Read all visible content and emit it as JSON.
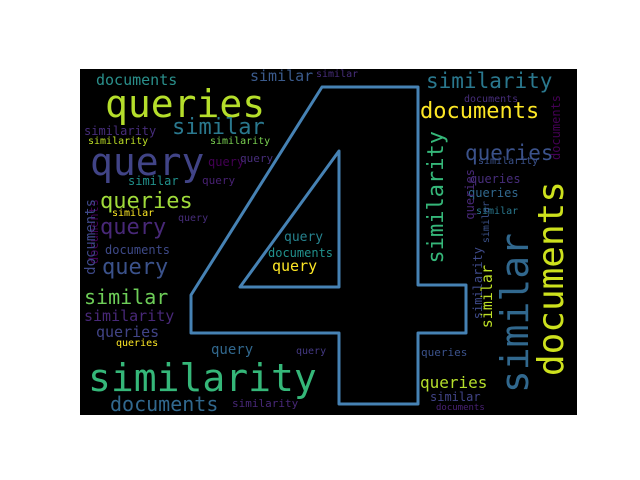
{
  "word_cloud": {
    "words": [
      {
        "text": "documents",
        "color": "#2a8f8b"
      },
      {
        "text": "similar",
        "color": "#3b5b8d"
      },
      {
        "text": "similar",
        "color": "#472d7b"
      },
      {
        "text": "similarity",
        "color": "#2a788e"
      },
      {
        "text": "queries",
        "color": "#b5de2b"
      },
      {
        "text": "documents",
        "color": "#fde725"
      },
      {
        "text": "documents",
        "color": "#472d7b"
      },
      {
        "text": "similarity",
        "color": "#472d7b"
      },
      {
        "text": "similar",
        "color": "#2a788e"
      },
      {
        "text": "similarity",
        "color": "#bddf26"
      },
      {
        "text": "similarity",
        "color": "#7ad151"
      },
      {
        "text": "queries",
        "color": "#3b528b"
      },
      {
        "text": "query",
        "color": "#414487"
      },
      {
        "text": "query",
        "color": "#440154"
      },
      {
        "text": "similar",
        "color": "#21918c"
      },
      {
        "text": "query",
        "color": "#482173"
      },
      {
        "text": "queries",
        "color": "#472d7b"
      },
      {
        "text": "similarity",
        "color": "#35b779"
      },
      {
        "text": "documents",
        "color": "#440154"
      },
      {
        "text": "queries",
        "color": "#9fda3a"
      },
      {
        "text": "queries",
        "color": "#31688e"
      },
      {
        "text": "query",
        "color": "#472d7b"
      },
      {
        "text": "similar",
        "color": "#fde725"
      },
      {
        "text": "query",
        "color": "#482878"
      },
      {
        "text": "documents",
        "color": "#3e4989"
      },
      {
        "text": "query",
        "color": "#3b528b"
      },
      {
        "text": "documents",
        "color": "#3e4a89"
      },
      {
        "text": "query",
        "color": "#26828e"
      },
      {
        "text": "documents",
        "color": "#21918c"
      },
      {
        "text": "query",
        "color": "#fde725"
      },
      {
        "text": "similar",
        "color": "#6ece58"
      },
      {
        "text": "similarity",
        "color": "#482878"
      },
      {
        "text": "queries",
        "color": "#414487"
      },
      {
        "text": "queries",
        "color": "#fde725"
      },
      {
        "text": "queries",
        "color": "#482878"
      },
      {
        "text": "query",
        "color": "#31688e"
      },
      {
        "text": "query",
        "color": "#443983"
      },
      {
        "text": "queries",
        "color": "#3b528b"
      },
      {
        "text": "similarity",
        "color": "#35b779"
      },
      {
        "text": "queries",
        "color": "#b5de2b"
      },
      {
        "text": "documents",
        "color": "#31688e"
      },
      {
        "text": "similarity",
        "color": "#482878"
      },
      {
        "text": "similar",
        "color": "#414487"
      },
      {
        "text": "documents",
        "color": "#482173"
      },
      {
        "text": "similarity",
        "color": "#3e4a89"
      },
      {
        "text": "similar",
        "color": "#3b528b"
      },
      {
        "text": "documents",
        "color": "#cde11d"
      },
      {
        "text": "similar",
        "color": "#31688e"
      },
      {
        "text": "similar",
        "color": "#bddf26"
      },
      {
        "text": "documents",
        "color": "#440154"
      },
      {
        "text": "similarity",
        "color": "#3b528b"
      },
      {
        "text": "similar",
        "color": "#2a788e"
      }
    ],
    "big_glyph": "4",
    "outline_color": "#4682b4",
    "background_color": "#000000"
  }
}
